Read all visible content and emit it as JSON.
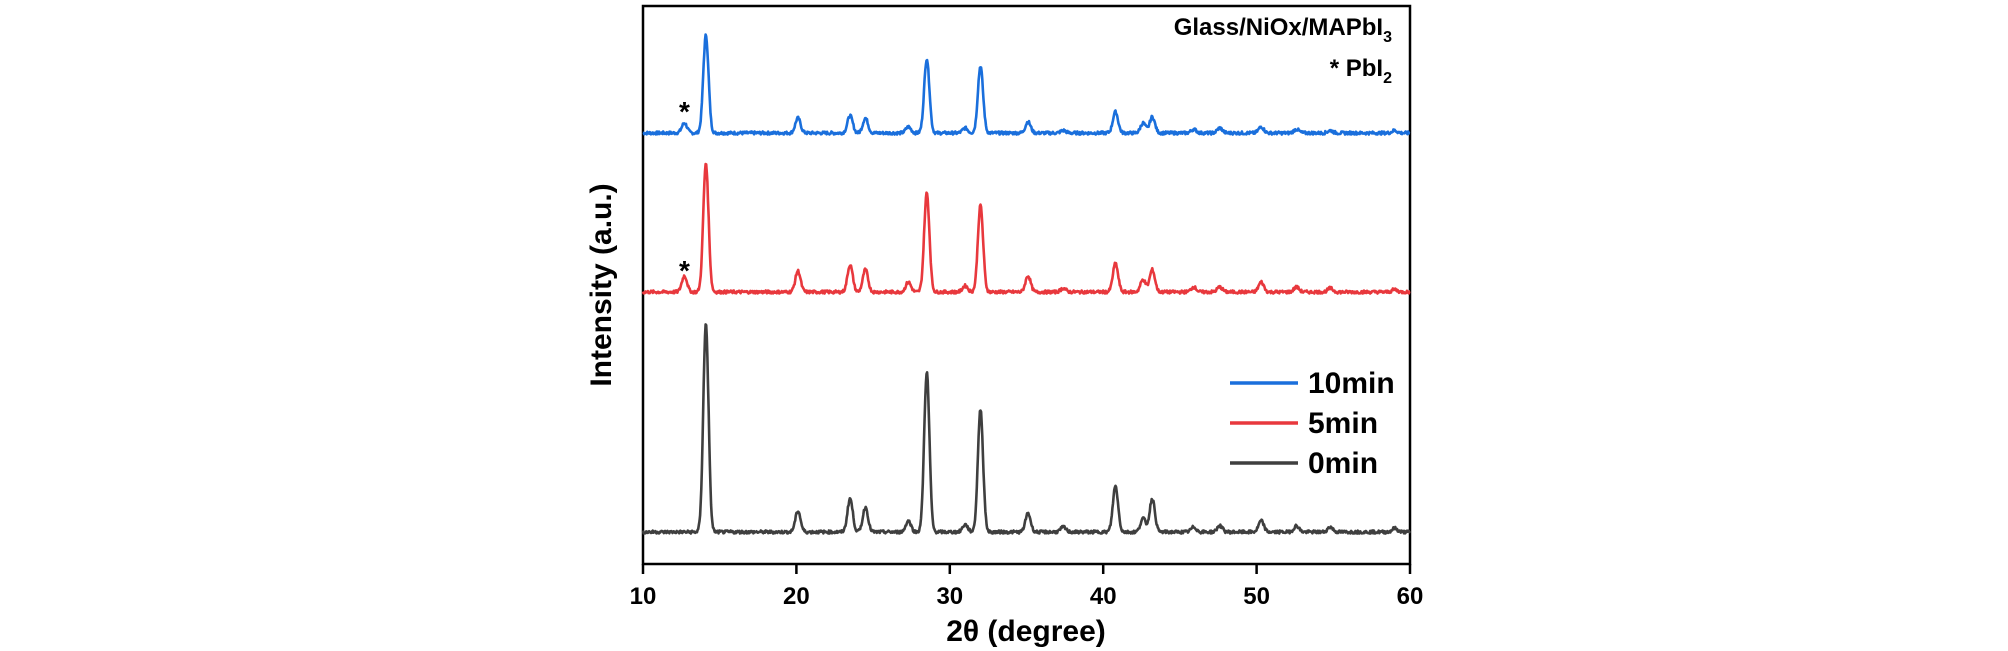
{
  "chart_data": {
    "type": "line",
    "title": "",
    "xlabel_prefix": "2",
    "xlabel_symbol": "θ",
    "xlabel_suffix": " (degree)",
    "ylabel": "Intensity (a.u.)",
    "xlim": [
      10,
      60
    ],
    "xticks": [
      "10",
      "20",
      "30",
      "40",
      "50",
      "60"
    ],
    "y_ticks_shown": false,
    "grid": false,
    "legend_position": "center-right",
    "annotations": {
      "sample_main": "Glass/NiOx/MAPbI",
      "sample_sub": "3",
      "pbi2_main": "* PbI",
      "pbi2_sub": "2",
      "pbi2_marker": "*"
    },
    "series": [
      {
        "name": "10min",
        "color": "#1a6fdc",
        "pbi2_marker_x": 12.7,
        "peaks": [
          [
            12.7,
            0.8
          ],
          [
            14.1,
            7.9
          ],
          [
            20.1,
            1.2
          ],
          [
            23.5,
            1.4
          ],
          [
            24.5,
            1.2
          ],
          [
            27.3,
            0.5
          ],
          [
            28.5,
            6.0
          ],
          [
            31.0,
            0.4
          ],
          [
            32.0,
            5.4
          ],
          [
            35.1,
            0.9
          ],
          [
            37.4,
            0.2
          ],
          [
            40.8,
            1.7
          ],
          [
            42.6,
            0.8
          ],
          [
            43.2,
            1.3
          ],
          [
            45.9,
            0.3
          ],
          [
            47.6,
            0.4
          ],
          [
            50.3,
            0.5
          ],
          [
            52.6,
            0.3
          ],
          [
            54.8,
            0.2
          ],
          [
            59.0,
            0.2
          ]
        ]
      },
      {
        "name": "5min",
        "color": "#e8383d",
        "pbi2_marker_x": 12.7,
        "peaks": [
          [
            12.7,
            1.3
          ],
          [
            14.1,
            10.4
          ],
          [
            20.1,
            1.7
          ],
          [
            23.5,
            2.2
          ],
          [
            24.5,
            1.8
          ],
          [
            27.3,
            0.8
          ],
          [
            28.5,
            8.0
          ],
          [
            31.0,
            0.5
          ],
          [
            32.0,
            7.0
          ],
          [
            35.1,
            1.3
          ],
          [
            37.4,
            0.3
          ],
          [
            40.8,
            2.3
          ],
          [
            42.6,
            1.0
          ],
          [
            43.2,
            1.8
          ],
          [
            45.9,
            0.4
          ],
          [
            47.6,
            0.4
          ],
          [
            50.3,
            0.8
          ],
          [
            52.6,
            0.4
          ],
          [
            54.8,
            0.3
          ],
          [
            59.0,
            0.2
          ]
        ]
      },
      {
        "name": "0min",
        "color": "#3f3f3f",
        "peaks": [
          [
            14.1,
            16.8
          ],
          [
            20.1,
            1.7
          ],
          [
            23.5,
            2.7
          ],
          [
            24.5,
            2.0
          ],
          [
            27.3,
            0.9
          ],
          [
            28.5,
            12.9
          ],
          [
            31.0,
            0.6
          ],
          [
            32.0,
            9.9
          ],
          [
            35.1,
            1.5
          ],
          [
            37.4,
            0.4
          ],
          [
            40.8,
            3.7
          ],
          [
            42.6,
            1.1
          ],
          [
            43.2,
            2.7
          ],
          [
            45.9,
            0.4
          ],
          [
            47.6,
            0.5
          ],
          [
            50.3,
            0.9
          ],
          [
            52.6,
            0.5
          ],
          [
            54.8,
            0.4
          ],
          [
            59.0,
            0.3
          ]
        ]
      }
    ]
  }
}
